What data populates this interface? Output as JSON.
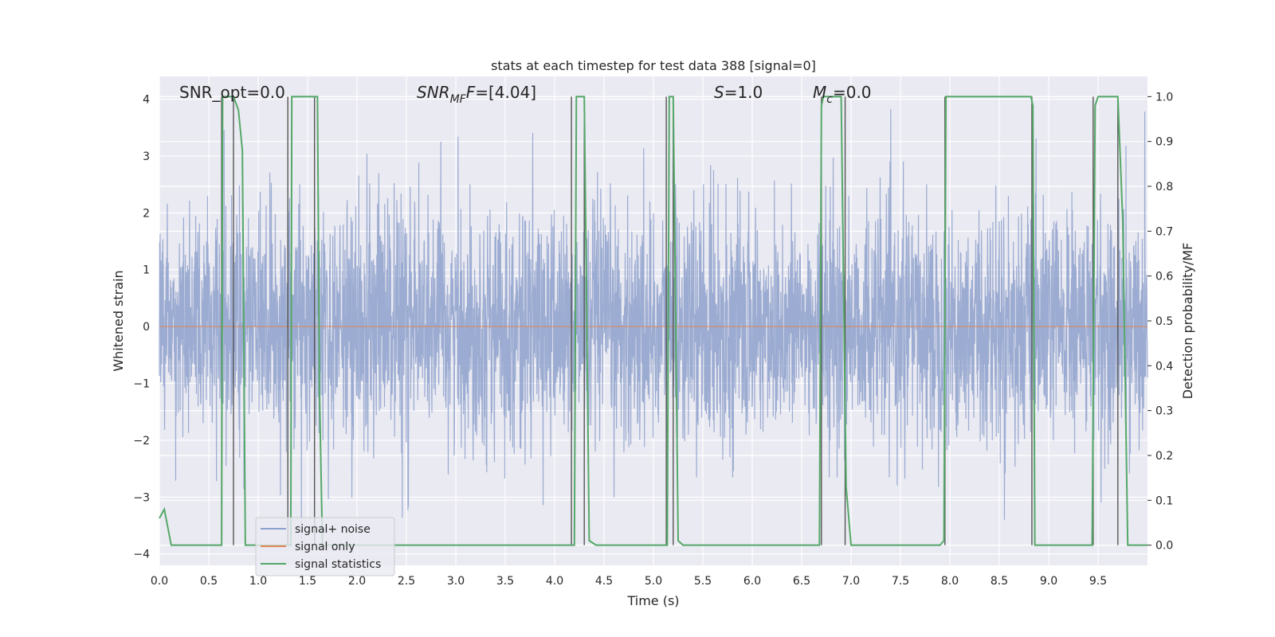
{
  "chart_data": {
    "type": "line",
    "title": "stats at each timestep for test data 388 [signal=0]",
    "xlabel": "Time (s)",
    "ylabel": "Whitened strain",
    "y2label": "Detection probability/MF",
    "xlim": [
      0,
      10
    ],
    "ylim": [
      -4.2,
      4.4
    ],
    "y2lim": [
      -0.045,
      1.045
    ],
    "xticks": [
      "0.0",
      "0.5",
      "1.0",
      "1.5",
      "2.0",
      "2.5",
      "3.0",
      "3.5",
      "4.0",
      "4.5",
      "5.0",
      "5.5",
      "6.0",
      "6.5",
      "7.0",
      "7.5",
      "8.0",
      "8.5",
      "9.0",
      "9.5"
    ],
    "yticks": [
      "−4",
      "−3",
      "−2",
      "−1",
      "0",
      "1",
      "2",
      "3",
      "4"
    ],
    "y2ticks": [
      "0.0",
      "0.1",
      "0.2",
      "0.3",
      "0.4",
      "0.5",
      "0.6",
      "0.7",
      "0.8",
      "0.9",
      "1.0"
    ],
    "grid": true,
    "legend_position": "lower-left",
    "annotations": {
      "snr_opt": "SNR_opt=0.0",
      "snr_mf": "=[4.04]",
      "s": "=1.0",
      "mc": "=0.0"
    },
    "series": [
      {
        "name": "signal+ noise",
        "color": "#8da0cb",
        "kind": "noise",
        "sigma": 1.0,
        "ylim_band": [
          -3.9,
          4.0
        ]
      },
      {
        "name": "signal only",
        "color": "#dd8452",
        "kind": "constant",
        "value": 0.0
      },
      {
        "name": "signal statistics",
        "color": "#55a868",
        "axis": "right",
        "x": [
          0.0,
          0.05,
          0.12,
          0.18,
          0.5,
          0.55,
          0.62,
          0.63,
          0.64,
          0.67,
          0.75,
          0.8,
          0.84,
          0.87,
          0.9,
          1.3,
          1.32,
          1.33,
          1.34,
          1.36,
          1.6,
          1.62,
          1.65,
          4.18,
          4.2,
          4.22,
          4.25,
          4.3,
          4.35,
          4.42,
          5.12,
          5.14,
          5.16,
          5.2,
          5.25,
          5.3,
          6.68,
          6.7,
          6.72,
          6.75,
          6.9,
          6.95,
          7.0,
          7.05,
          7.1,
          7.9,
          7.94,
          7.96,
          8.0,
          8.82,
          8.84,
          8.86,
          8.9,
          9.4,
          9.44,
          9.47,
          9.5,
          9.52,
          9.7,
          9.75,
          9.8,
          10.0
        ],
        "y": [
          0.06,
          0.08,
          0.0,
          0.0,
          0.0,
          0.0,
          0.0,
          0.0,
          1.0,
          1.0,
          1.0,
          0.97,
          0.88,
          0.0,
          0.0,
          0.0,
          0.0,
          0.0,
          1.0,
          1.0,
          1.0,
          0.35,
          0.0,
          0.0,
          0.0,
          1.0,
          1.0,
          1.0,
          0.01,
          0.0,
          0.0,
          0.0,
          1.0,
          1.0,
          0.01,
          0.0,
          0.0,
          0.98,
          1.0,
          1.0,
          1.0,
          0.13,
          0.0,
          0.0,
          0.0,
          0.0,
          0.01,
          1.0,
          1.0,
          1.0,
          0.98,
          0.0,
          0.0,
          0.0,
          0.0,
          0.98,
          1.0,
          1.0,
          1.0,
          0.72,
          0.0,
          0.0
        ]
      }
    ],
    "vlines": {
      "color": "#555555",
      "x": [
        0.63,
        0.75,
        1.3,
        1.57,
        4.17,
        4.3,
        5.13,
        5.2,
        6.7,
        6.94,
        7.95,
        8.83,
        9.45,
        9.7
      ]
    }
  }
}
